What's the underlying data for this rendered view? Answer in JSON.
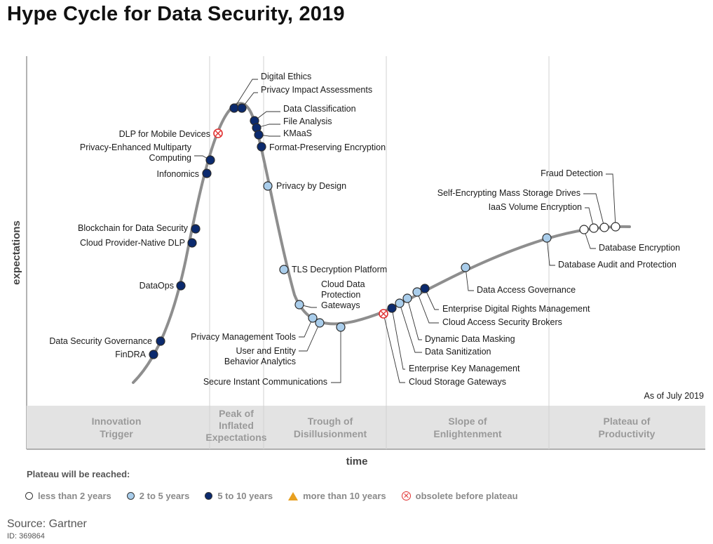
{
  "title": "Hype Cycle for Data Security, 2019",
  "chart_data": {
    "type": "scatter",
    "title": "Hype Cycle for Data Security, 2019",
    "xlabel": "time",
    "ylabel": "expectations",
    "as_of": "As of July 2019",
    "phases": [
      "Innovation Trigger",
      "Peak of Inflated Expectations",
      "Trough of Disillusionment",
      "Slope of Enlightenment",
      "Plateau of Productivity"
    ],
    "legend_title": "Plateau will be reached:",
    "legend": [
      {
        "name": "less than 2 years",
        "marker": "white-circle",
        "color": "#ffffff"
      },
      {
        "name": "2 to 5 years",
        "marker": "lightblue-circle",
        "color": "#a9cdeb"
      },
      {
        "name": "5 to 10 years",
        "marker": "darkblue-circle",
        "color": "#0b2a6e"
      },
      {
        "name": "more than 10 years",
        "marker": "orange-triangle",
        "color": "#e8a020"
      },
      {
        "name": "obsolete before plateau",
        "marker": "obsolete-circle",
        "color": "#e03030"
      }
    ],
    "technologies": [
      {
        "name": "FinDRA",
        "plateau": "5 to 10 years"
      },
      {
        "name": "Data Security Governance",
        "plateau": "5 to 10 years"
      },
      {
        "name": "DataOps",
        "plateau": "5 to 10 years"
      },
      {
        "name": "Cloud Provider-Native DLP",
        "plateau": "5 to 10 years"
      },
      {
        "name": "Blockchain for Data Security",
        "plateau": "5 to 10 years"
      },
      {
        "name": "Infonomics",
        "plateau": "5 to 10 years"
      },
      {
        "name": "Privacy-Enhanced Multiparty Computing",
        "plateau": "5 to 10 years"
      },
      {
        "name": "DLP for Mobile Devices",
        "plateau": "obsolete before plateau"
      },
      {
        "name": "Digital Ethics",
        "plateau": "5 to 10 years"
      },
      {
        "name": "Privacy Impact Assessments",
        "plateau": "5 to 10 years"
      },
      {
        "name": "Data Classification",
        "plateau": "5 to 10 years"
      },
      {
        "name": "File Analysis",
        "plateau": "5 to 10 years"
      },
      {
        "name": "KMaaS",
        "plateau": "5 to 10 years"
      },
      {
        "name": "Format-Preserving Encryption",
        "plateau": "5 to 10 years"
      },
      {
        "name": "Privacy by Design",
        "plateau": "2 to 5 years"
      },
      {
        "name": "TLS Decryption Platform",
        "plateau": "2 to 5 years"
      },
      {
        "name": "Cloud Data Protection Gateways",
        "plateau": "2 to 5 years"
      },
      {
        "name": "Privacy Management Tools",
        "plateau": "2 to 5 years"
      },
      {
        "name": "User and Entity Behavior Analytics",
        "plateau": "2 to 5 years"
      },
      {
        "name": "Secure Instant Communications",
        "plateau": "2 to 5 years"
      },
      {
        "name": "Cloud Storage Gateways",
        "plateau": "obsolete before plateau"
      },
      {
        "name": "Enterprise Key Management",
        "plateau": "5 to 10 years"
      },
      {
        "name": "Data Sanitization",
        "plateau": "2 to 5 years"
      },
      {
        "name": "Dynamic Data Masking",
        "plateau": "2 to 5 years"
      },
      {
        "name": "Cloud Access Security Brokers",
        "plateau": "2 to 5 years"
      },
      {
        "name": "Enterprise Digital Rights Management",
        "plateau": "5 to 10 years"
      },
      {
        "name": "Data Access Governance",
        "plateau": "2 to 5 years"
      },
      {
        "name": "Database Audit and Protection",
        "plateau": "2 to 5 years"
      },
      {
        "name": "Database Encryption",
        "plateau": "less than 2 years"
      },
      {
        "name": "IaaS Volume Encryption",
        "plateau": "less than 2 years"
      },
      {
        "name": "Self-Encrypting Mass Storage Drives",
        "plateau": "less than 2 years"
      },
      {
        "name": "Fraud Detection",
        "plateau": "less than 2 years"
      }
    ]
  },
  "source": "Source: Gartner",
  "doc_id": "ID: 369864"
}
